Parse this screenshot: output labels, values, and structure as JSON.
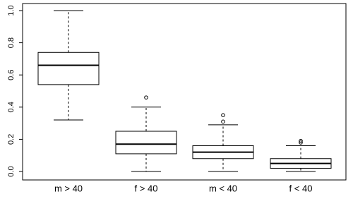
{
  "chart_data": {
    "type": "box",
    "categories": [
      "m > 40",
      "f > 40",
      "m < 40",
      "f < 40"
    ],
    "boxes": [
      {
        "min": 0.32,
        "q1": 0.54,
        "median": 0.66,
        "q3": 0.74,
        "max": 1.0,
        "outliers": []
      },
      {
        "min": 0.0,
        "q1": 0.11,
        "median": 0.17,
        "q3": 0.25,
        "max": 0.4,
        "outliers": [
          0.46
        ]
      },
      {
        "min": 0.0,
        "q1": 0.08,
        "median": 0.12,
        "q3": 0.16,
        "max": 0.29,
        "outliers": [
          0.31,
          0.35
        ]
      },
      {
        "min": 0.0,
        "q1": 0.02,
        "median": 0.05,
        "q3": 0.08,
        "max": 0.16,
        "outliers": [
          0.18,
          0.19
        ]
      }
    ],
    "color": "#000000",
    "ylim": [
      0,
      1
    ],
    "yticks": [
      {
        "value": 0,
        "label": "0.0"
      },
      0.2,
      0.4,
      0.6,
      0.8,
      {
        "value": 1,
        "label": "1.0"
      }
    ]
  }
}
